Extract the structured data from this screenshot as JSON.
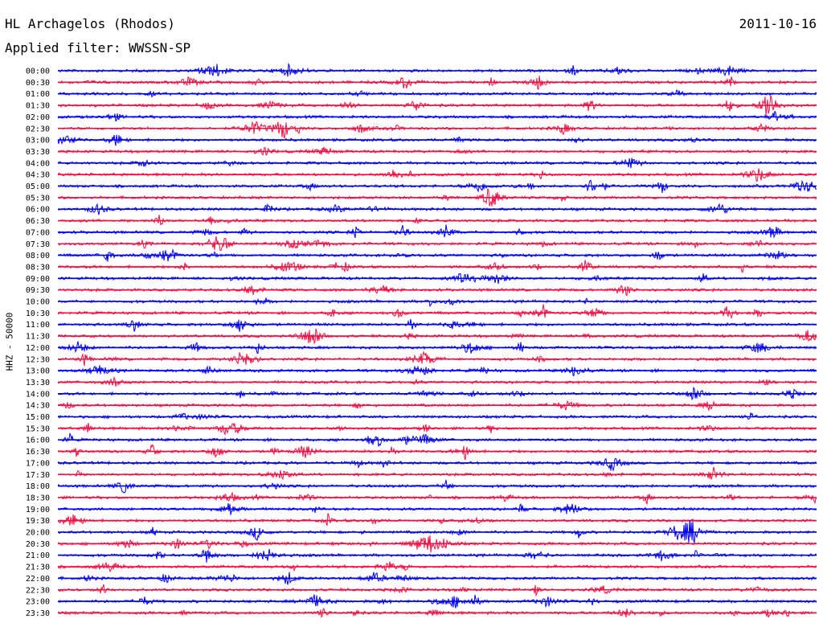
{
  "header": {
    "station": "HL Archagelos (Rhodos)",
    "date": "2011-10-16",
    "filter": "Applied filter: WWSSN-SP",
    "channel": "HHZ - 50000"
  },
  "chart_data": {
    "type": "line",
    "title": "HL Archagelos (Rhodos)",
    "ylabel": "HHZ - 50000",
    "colors": [
      "#0000ee",
      "#ee1144"
    ],
    "rows": [
      {
        "label": "00:00",
        "color": "#0000ee"
      },
      {
        "label": "00:30",
        "color": "#ee1144"
      },
      {
        "label": "01:00",
        "color": "#0000ee"
      },
      {
        "label": "01:30",
        "color": "#ee1144"
      },
      {
        "label": "02:00",
        "color": "#0000ee"
      },
      {
        "label": "02:30",
        "color": "#ee1144"
      },
      {
        "label": "03:00",
        "color": "#0000ee"
      },
      {
        "label": "03:30",
        "color": "#ee1144"
      },
      {
        "label": "04:00",
        "color": "#0000ee"
      },
      {
        "label": "04:30",
        "color": "#ee1144"
      },
      {
        "label": "05:00",
        "color": "#0000ee"
      },
      {
        "label": "05:30",
        "color": "#ee1144"
      },
      {
        "label": "06:00",
        "color": "#0000ee"
      },
      {
        "label": "06:30",
        "color": "#ee1144"
      },
      {
        "label": "07:00",
        "color": "#0000ee"
      },
      {
        "label": "07:30",
        "color": "#ee1144"
      },
      {
        "label": "08:00",
        "color": "#0000ee"
      },
      {
        "label": "08:30",
        "color": "#ee1144"
      },
      {
        "label": "09:00",
        "color": "#0000ee"
      },
      {
        "label": "09:30",
        "color": "#ee1144"
      },
      {
        "label": "10:00",
        "color": "#0000ee"
      },
      {
        "label": "10:30",
        "color": "#ee1144"
      },
      {
        "label": "11:00",
        "color": "#0000ee"
      },
      {
        "label": "11:30",
        "color": "#ee1144"
      },
      {
        "label": "12:00",
        "color": "#0000ee"
      },
      {
        "label": "12:30",
        "color": "#ee1144"
      },
      {
        "label": "13:00",
        "color": "#0000ee"
      },
      {
        "label": "13:30",
        "color": "#ee1144"
      },
      {
        "label": "14:00",
        "color": "#0000ee"
      },
      {
        "label": "14:30",
        "color": "#ee1144"
      },
      {
        "label": "15:00",
        "color": "#0000ee"
      },
      {
        "label": "15:30",
        "color": "#ee1144"
      },
      {
        "label": "16:00",
        "color": "#0000ee"
      },
      {
        "label": "16:30",
        "color": "#ee1144"
      },
      {
        "label": "17:00",
        "color": "#0000ee"
      },
      {
        "label": "17:30",
        "color": "#ee1144"
      },
      {
        "label": "18:00",
        "color": "#0000ee"
      },
      {
        "label": "18:30",
        "color": "#ee1144"
      },
      {
        "label": "19:00",
        "color": "#0000ee"
      },
      {
        "label": "19:30",
        "color": "#ee1144"
      },
      {
        "label": "20:00",
        "color": "#0000ee"
      },
      {
        "label": "20:30",
        "color": "#ee1144"
      },
      {
        "label": "21:00",
        "color": "#0000ee"
      },
      {
        "label": "21:30",
        "color": "#ee1144"
      },
      {
        "label": "22:00",
        "color": "#0000ee"
      },
      {
        "label": "22:30",
        "color": "#ee1144"
      },
      {
        "label": "23:00",
        "color": "#0000ee"
      },
      {
        "label": "23:30",
        "color": "#ee1144"
      }
    ]
  }
}
